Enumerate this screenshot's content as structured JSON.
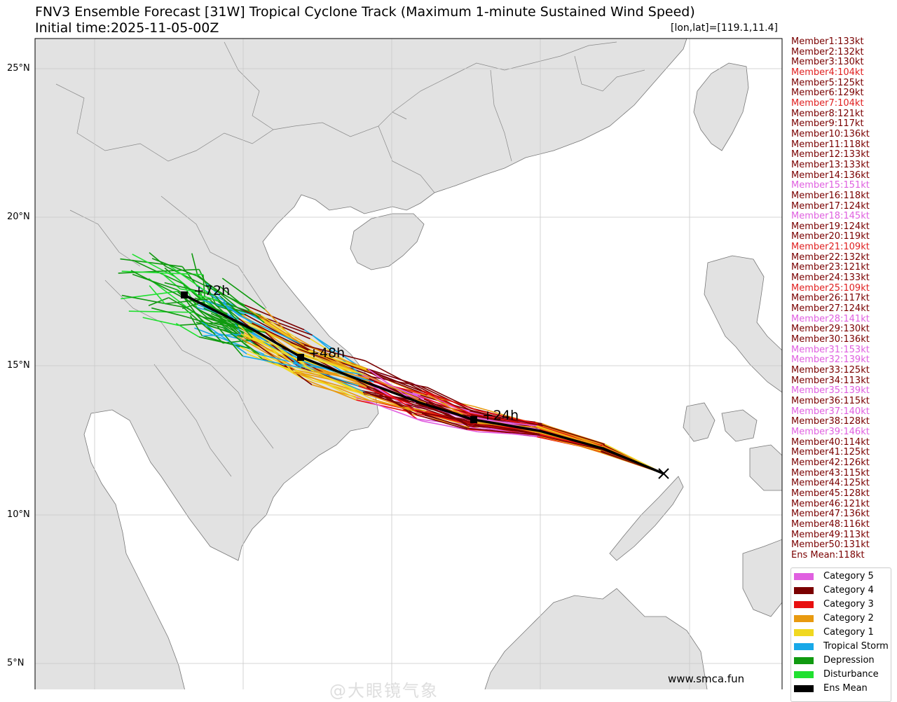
{
  "title": "FNV3 Ensemble Forecast [31W] Tropical Cyclone Track (Maximum 1-minute Sustained Wind Speed)",
  "subtitle": "Initial time:2025-11-05-00Z",
  "coord_readout": "[lon,lat]=[119.1,11.4]",
  "lat_labels": [
    "25°N",
    "20°N",
    "15°N",
    "10°N",
    "5°N"
  ],
  "time_labels": [
    "+24h",
    "+48h",
    "+72h"
  ],
  "members": [
    {
      "label": "Member1:133kt",
      "color": "#7a0000"
    },
    {
      "label": "Member2:132kt",
      "color": "#7a0000"
    },
    {
      "label": "Member3:130kt",
      "color": "#7a0000"
    },
    {
      "label": "Member4:104kt",
      "color": "#e02020"
    },
    {
      "label": "Member5:125kt",
      "color": "#7a0000"
    },
    {
      "label": "Member6:129kt",
      "color": "#7a0000"
    },
    {
      "label": "Member7:104kt",
      "color": "#e02020"
    },
    {
      "label": "Member8:121kt",
      "color": "#7a0000"
    },
    {
      "label": "Member9:117kt",
      "color": "#7a0000"
    },
    {
      "label": "Member10:136kt",
      "color": "#7a0000"
    },
    {
      "label": "Member11:118kt",
      "color": "#7a0000"
    },
    {
      "label": "Member12:133kt",
      "color": "#7a0000"
    },
    {
      "label": "Member13:133kt",
      "color": "#7a0000"
    },
    {
      "label": "Member14:136kt",
      "color": "#7a0000"
    },
    {
      "label": "Member15:151kt",
      "color": "#e060e0"
    },
    {
      "label": "Member16:118kt",
      "color": "#7a0000"
    },
    {
      "label": "Member17:124kt",
      "color": "#7a0000"
    },
    {
      "label": "Member18:145kt",
      "color": "#e060e0"
    },
    {
      "label": "Member19:124kt",
      "color": "#7a0000"
    },
    {
      "label": "Member20:119kt",
      "color": "#7a0000"
    },
    {
      "label": "Member21:109kt",
      "color": "#e02020"
    },
    {
      "label": "Member22:132kt",
      "color": "#7a0000"
    },
    {
      "label": "Member23:121kt",
      "color": "#7a0000"
    },
    {
      "label": "Member24:133kt",
      "color": "#7a0000"
    },
    {
      "label": "Member25:109kt",
      "color": "#e02020"
    },
    {
      "label": "Member26:117kt",
      "color": "#7a0000"
    },
    {
      "label": "Member27:124kt",
      "color": "#7a0000"
    },
    {
      "label": "Member28:141kt",
      "color": "#e060e0"
    },
    {
      "label": "Member29:130kt",
      "color": "#7a0000"
    },
    {
      "label": "Member30:136kt",
      "color": "#7a0000"
    },
    {
      "label": "Member31:153kt",
      "color": "#e060e0"
    },
    {
      "label": "Member32:139kt",
      "color": "#e060e0"
    },
    {
      "label": "Member33:125kt",
      "color": "#7a0000"
    },
    {
      "label": "Member34:113kt",
      "color": "#7a0000"
    },
    {
      "label": "Member35:139kt",
      "color": "#e060e0"
    },
    {
      "label": "Member36:115kt",
      "color": "#7a0000"
    },
    {
      "label": "Member37:140kt",
      "color": "#e060e0"
    },
    {
      "label": "Member38:128kt",
      "color": "#7a0000"
    },
    {
      "label": "Member39:146kt",
      "color": "#e060e0"
    },
    {
      "label": "Member40:114kt",
      "color": "#7a0000"
    },
    {
      "label": "Member41:125kt",
      "color": "#7a0000"
    },
    {
      "label": "Member42:126kt",
      "color": "#7a0000"
    },
    {
      "label": "Member43:115kt",
      "color": "#7a0000"
    },
    {
      "label": "Member44:125kt",
      "color": "#7a0000"
    },
    {
      "label": "Member45:128kt",
      "color": "#7a0000"
    },
    {
      "label": "Member46:121kt",
      "color": "#7a0000"
    },
    {
      "label": "Member47:136kt",
      "color": "#7a0000"
    },
    {
      "label": "Member48:116kt",
      "color": "#7a0000"
    },
    {
      "label": "Member49:113kt",
      "color": "#7a0000"
    },
    {
      "label": "Member50:131kt",
      "color": "#7a0000"
    },
    {
      "label": "Ens Mean:118kt",
      "color": "#7a0000"
    }
  ],
  "legend": [
    {
      "label": "Category 5",
      "color": "#e060e0"
    },
    {
      "label": "Category 4",
      "color": "#7a0000"
    },
    {
      "label": "Category 3",
      "color": "#e81010"
    },
    {
      "label": "Category 2",
      "color": "#e89a10"
    },
    {
      "label": "Category 1",
      "color": "#f0d820"
    },
    {
      "label": "Tropical Storm",
      "color": "#18a8e8"
    },
    {
      "label": "Depression",
      "color": "#109a10"
    },
    {
      "label": "Disturbance",
      "color": "#20e030"
    },
    {
      "label": "Ens Mean",
      "color": "#000000"
    }
  ],
  "credit": "www.smca.fun",
  "watermark": "@大眼镜气象"
}
